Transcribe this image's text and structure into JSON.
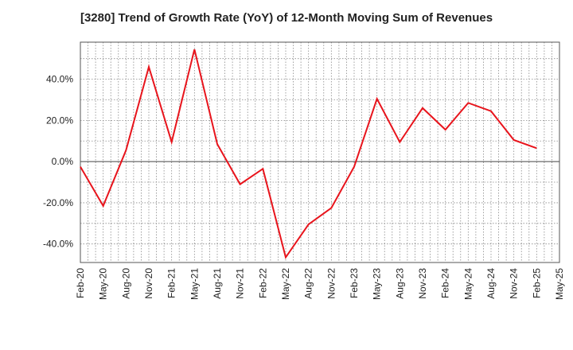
{
  "chart_data": {
    "type": "line",
    "title": "[3280]  Trend of Growth Rate (YoY) of 12-Month Moving Sum of Revenues",
    "xlabel": "",
    "ylabel": "",
    "ylim": [
      -49,
      58
    ],
    "y_ticks": [
      "40.0%",
      "20.0%",
      "0.0%",
      "-20.0%",
      "-40.0%"
    ],
    "y_tick_values": [
      40,
      20,
      0,
      -20,
      -40
    ],
    "x_tick_labels": [
      "Feb-20",
      "May-20",
      "Aug-20",
      "Nov-20",
      "Feb-21",
      "May-21",
      "Aug-21",
      "Nov-21",
      "Feb-22",
      "May-22",
      "Aug-22",
      "Nov-22",
      "Feb-23",
      "May-23",
      "Aug-23",
      "Nov-23",
      "Feb-24",
      "May-24",
      "Aug-24",
      "Nov-24",
      "Feb-25",
      "May-25"
    ],
    "grid": true,
    "line_color": "#e8141c",
    "series": [
      {
        "values": [
          -2.5,
          -21.5,
          5.5,
          46.0,
          9.5,
          54.5,
          8.5,
          -11.0,
          -3.5,
          -46.5,
          -30.5,
          -22.5,
          -2.5,
          30.5,
          9.5,
          26.0,
          15.5,
          28.5,
          24.5,
          10.5,
          6.5
        ]
      }
    ]
  }
}
